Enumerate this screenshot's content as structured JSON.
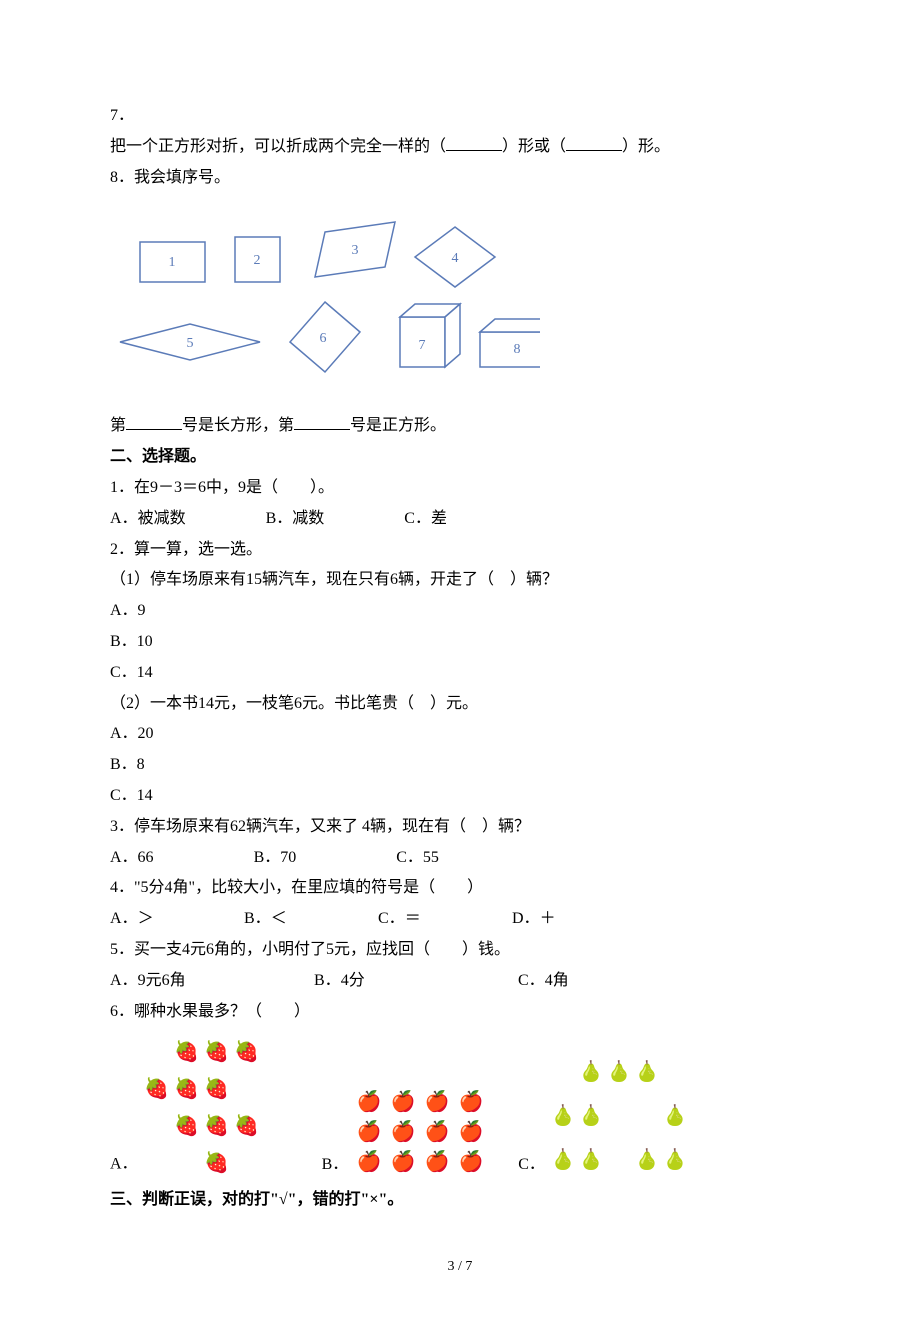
{
  "q7": {
    "num": "7．",
    "text_before": "把一个正方形对折，可以折成两个完全一样的（",
    "text_mid": "）形或（",
    "text_after": "）形。"
  },
  "q8": {
    "num": "8．",
    "text": "我会填序号。",
    "shapes": {
      "labels": [
        "1",
        "2",
        "3",
        "4",
        "5",
        "6",
        "7",
        "8"
      ],
      "stroke": "#5b7bb8",
      "fill": "#ffffff",
      "text_color": "#5b7bb8"
    },
    "fill_before": "第",
    "fill_mid": "号是长方形，第",
    "fill_after": "号是正方形。"
  },
  "section2": {
    "title": "二、选择题。"
  },
  "s2q1": {
    "num": "1．",
    "text": "在9－3＝6中，9是（　　）。",
    "A_label": "A．",
    "A_text": "被减数",
    "B_label": "B．",
    "B_text": "减数",
    "C_label": "C．",
    "C_text": "差"
  },
  "s2q2": {
    "num": "2．",
    "text": "算一算，选一选。",
    "p1": {
      "label": "（1）",
      "text": "停车场原来有15辆汽车，现在只有6辆，开走了（　）辆？",
      "A": "A．9",
      "B": "B．10",
      "C": "C．14"
    },
    "p2": {
      "label": "（2）",
      "text": "一本书14元，一枝笔6元。书比笔贵（　）元。",
      "A": "A．20",
      "B": "B．8",
      "C": "C．14"
    }
  },
  "s2q3": {
    "num": "3．",
    "text": "停车场原来有62辆汽车，又来了 4辆，现在有（　）辆？",
    "A": "A．66",
    "B": "B．70",
    "C": "C．55"
  },
  "s2q4": {
    "num": "4．",
    "text": "\"5分4角\"，比较大小，在里应填的符号是（　　）",
    "A_label": "A．",
    "A_text": "＞",
    "B_label": "B．",
    "B_text": "＜",
    "C_label": "C．",
    "C_text": "＝",
    "D_label": "D．",
    "D_text": "＋"
  },
  "s2q5": {
    "num": "5．",
    "text": "买一支4元6角的，小明付了5元，应找回（　　）钱。",
    "A_label": "A．",
    "A_text": "9元6角",
    "B_label": "B．",
    "B_text": "4分",
    "C_label": "C．",
    "C_text": "4角"
  },
  "s2q6": {
    "num": "6．",
    "text": "哪种水果最多？（　　）",
    "A_label": "A．",
    "B_label": "B．",
    "C_label": "C．",
    "strawberries": {
      "rows": [
        [
          0,
          1,
          1,
          1,
          0
        ],
        [
          1,
          1,
          1,
          0,
          0
        ],
        [
          0,
          1,
          1,
          1,
          0
        ],
        [
          0,
          0,
          1,
          0,
          0
        ]
      ],
      "emoji": "🍓",
      "count": 10
    },
    "apples": {
      "rows": 3,
      "cols": 4,
      "emoji": "🍎",
      "count": 12
    },
    "pears": {
      "rows": [
        [
          0,
          1,
          1,
          1,
          0
        ],
        [
          1,
          1,
          0,
          0,
          1
        ],
        [
          1,
          1,
          0,
          1,
          1
        ]
      ],
      "emoji": "🍐",
      "count": 10
    }
  },
  "section3": {
    "title": "三、判断正误，对的打\"√\"，错的打\"×\"。"
  },
  "page": {
    "num": "3 / 7"
  }
}
